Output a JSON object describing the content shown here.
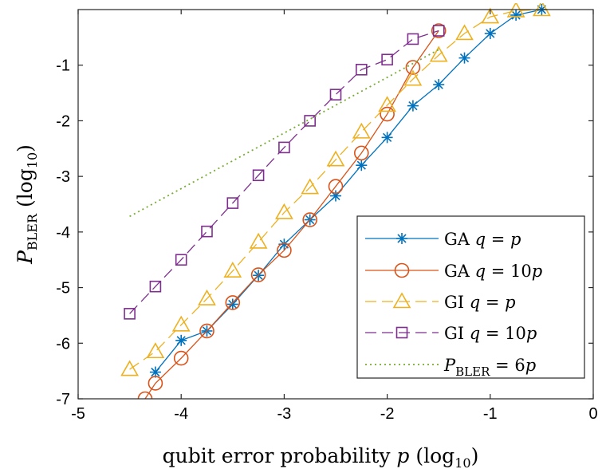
{
  "chart_data": {
    "type": "line",
    "xlabel": "qubit error probability p (log10)",
    "ylabel": "PBLER (log10)",
    "xlim": [
      -5,
      0
    ],
    "ylim": [
      -7,
      0
    ],
    "x_ticks": [
      "-5",
      "-4",
      "-3",
      "-2",
      "-1",
      "0"
    ],
    "y_ticks": [
      "-1",
      "-2",
      "-3",
      "-4",
      "-5",
      "-6",
      "-7"
    ],
    "grid": false,
    "legend_position": "bottom-right",
    "series": [
      {
        "name": "GA q = p",
        "color": "#0072BD",
        "marker": "asterisk",
        "line_style": "solid",
        "x": [
          -4.25,
          -4.0,
          -3.75,
          -3.5,
          -3.25,
          -3.0,
          -2.75,
          -2.5,
          -2.25,
          -2.0,
          -1.75,
          -1.5,
          -1.25,
          -1.0,
          -0.75,
          -0.5
        ],
        "y": [
          -6.52,
          -5.95,
          -5.78,
          -5.3,
          -4.78,
          -4.22,
          -3.78,
          -3.35,
          -2.8,
          -2.3,
          -1.73,
          -1.35,
          -0.87,
          -0.43,
          -0.1,
          0.0
        ]
      },
      {
        "name": "GA q = 10p",
        "color": "#D95319",
        "marker": "circle",
        "line_style": "solid",
        "x": [
          -4.35,
          -4.25,
          -4.0,
          -3.75,
          -3.5,
          -3.25,
          -3.0,
          -2.75,
          -2.5,
          -2.25,
          -2.0,
          -1.75,
          -1.5
        ],
        "y": [
          -7.0,
          -6.72,
          -6.27,
          -5.78,
          -5.27,
          -4.77,
          -4.33,
          -3.78,
          -3.18,
          -2.58,
          -1.88,
          -1.04,
          -0.38
        ]
      },
      {
        "name": "GI q = p",
        "color": "#EDB120",
        "marker": "triangle",
        "line_style": "dashed",
        "x": [
          -4.5,
          -4.25,
          -4.0,
          -3.75,
          -3.5,
          -3.25,
          -3.0,
          -2.75,
          -2.5,
          -2.25,
          -2.0,
          -1.75,
          -1.5,
          -1.25,
          -1.0,
          -0.75,
          -0.5
        ],
        "y": [
          -6.47,
          -6.15,
          -5.67,
          -5.2,
          -4.7,
          -4.18,
          -3.65,
          -3.2,
          -2.7,
          -2.2,
          -1.72,
          -1.25,
          -0.82,
          -0.43,
          -0.13,
          -0.02,
          0.0
        ]
      },
      {
        "name": "GI q = 10p",
        "color": "#7E2F8E",
        "marker": "square",
        "line_style": "dashed",
        "x": [
          -4.5,
          -4.25,
          -4.0,
          -3.75,
          -3.5,
          -3.25,
          -3.0,
          -2.75,
          -2.5,
          -2.25,
          -2.0,
          -1.75,
          -1.5
        ],
        "y": [
          -5.47,
          -4.98,
          -4.5,
          -3.99,
          -3.48,
          -2.98,
          -2.48,
          -2.0,
          -1.53,
          -1.08,
          -0.9,
          -0.53,
          -0.38
        ]
      },
      {
        "name": "PBLER = 6p",
        "color": "#77AC30",
        "marker": "none",
        "line_style": "dotted",
        "x": [
          -4.5,
          -1.5
        ],
        "y": [
          -3.72,
          -0.72
        ]
      }
    ]
  }
}
